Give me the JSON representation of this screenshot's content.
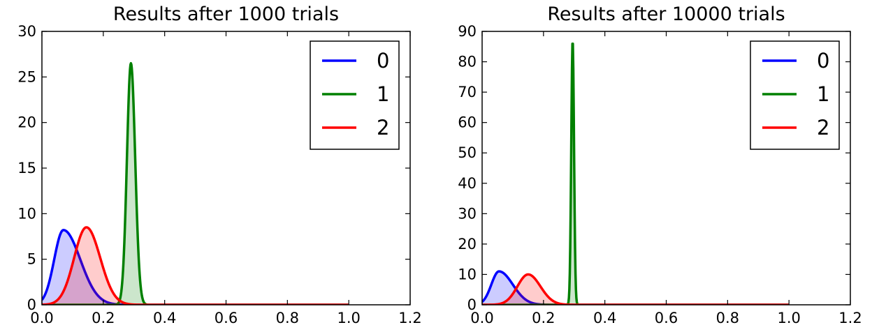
{
  "chart_data": [
    {
      "type": "area",
      "title": "Results after 1000 trials",
      "xlabel": "",
      "ylabel": "",
      "xlim": [
        0.0,
        1.2
      ],
      "ylim": [
        0,
        30
      ],
      "xticks": [
        "0.0",
        "0.2",
        "0.4",
        "0.6",
        "0.8",
        "1.0",
        "1.2"
      ],
      "yticks": [
        "0",
        "5",
        "10",
        "15",
        "20",
        "25",
        "30"
      ],
      "grid": false,
      "legend_position": "top-right",
      "x_end": 1.0,
      "series": [
        {
          "name": "0",
          "color": "#0000ff",
          "fill": "rgba(0,0,255,0.2)",
          "peak_x": 0.07,
          "peak_y": 8.2,
          "sd_left": 0.03,
          "sd_right": 0.055
        },
        {
          "name": "1",
          "color": "#008000",
          "fill": "rgba(0,128,0,0.2)",
          "peak_x": 0.29,
          "peak_y": 26.5,
          "sd_left": 0.013,
          "sd_right": 0.014
        },
        {
          "name": "2",
          "color": "#ff0000",
          "fill": "rgba(255,0,0,0.2)",
          "peak_x": 0.145,
          "peak_y": 8.5,
          "sd_left": 0.04,
          "sd_right": 0.045
        }
      ]
    },
    {
      "type": "area",
      "title": "Results after 10000 trials",
      "xlabel": "",
      "ylabel": "",
      "xlim": [
        0.0,
        1.2
      ],
      "ylim": [
        0,
        90
      ],
      "xticks": [
        "0.0",
        "0.2",
        "0.4",
        "0.6",
        "0.8",
        "1.0",
        "1.2"
      ],
      "yticks": [
        "0",
        "10",
        "20",
        "30",
        "40",
        "50",
        "60",
        "70",
        "80",
        "90"
      ],
      "grid": false,
      "legend_position": "top-right",
      "x_end": 1.0,
      "series": [
        {
          "name": "0",
          "color": "#0000ff",
          "fill": "rgba(0,0,255,0.2)",
          "peak_x": 0.055,
          "peak_y": 11,
          "sd_left": 0.025,
          "sd_right": 0.045
        },
        {
          "name": "1",
          "color": "#008000",
          "fill": "rgba(0,128,0,0.2)",
          "peak_x": 0.295,
          "peak_y": 87,
          "sd_left": 0.0045,
          "sd_right": 0.0045
        },
        {
          "name": "2",
          "color": "#ff0000",
          "fill": "rgba(255,0,0,0.2)",
          "peak_x": 0.15,
          "peak_y": 10,
          "sd_left": 0.035,
          "sd_right": 0.04
        }
      ]
    }
  ]
}
